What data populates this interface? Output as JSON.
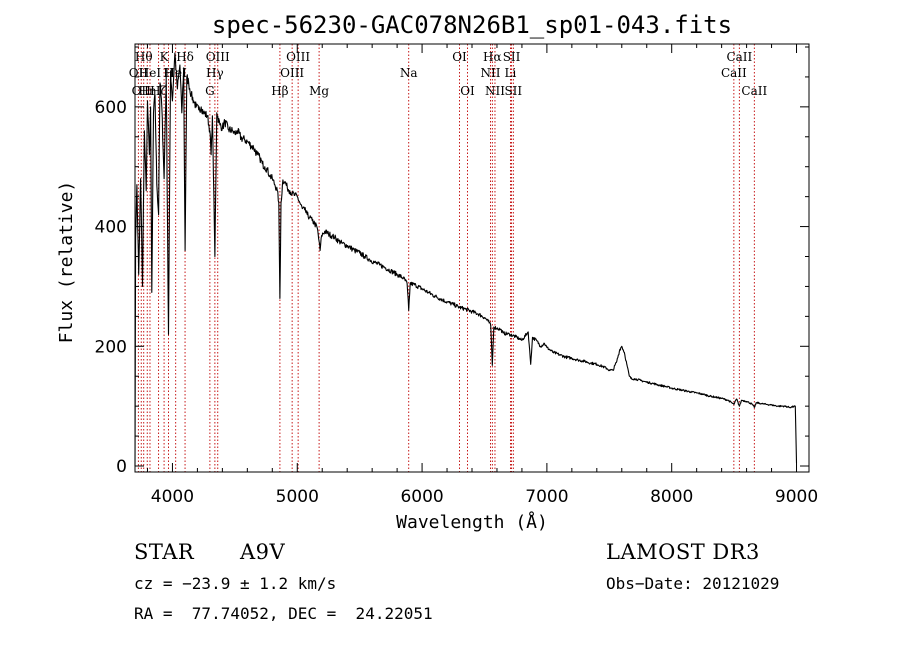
{
  "chart_data": {
    "type": "line",
    "title": "spec-56230-GAC078N26B1_sp01-043.fits",
    "xlabel": "Wavelength (Å)",
    "ylabel": "Flux (relative)",
    "xlim": [
      3700,
      9100
    ],
    "ylim": [
      -10,
      705
    ],
    "xticks": [
      4000,
      5000,
      6000,
      7000,
      8000,
      9000
    ],
    "yticks": [
      0,
      200,
      400,
      600
    ],
    "grid": false,
    "series": [
      {
        "name": "spectrum",
        "anchors": [
          [
            3700,
            0
          ],
          [
            3705,
            380
          ],
          [
            3715,
            470
          ],
          [
            3730,
            320
          ],
          [
            3745,
            480
          ],
          [
            3760,
            300
          ],
          [
            3775,
            560
          ],
          [
            3790,
            460
          ],
          [
            3800,
            610
          ],
          [
            3815,
            520
          ],
          [
            3825,
            600
          ],
          [
            3835,
            290
          ],
          [
            3848,
            590
          ],
          [
            3860,
            620
          ],
          [
            3875,
            470
          ],
          [
            3889,
            420
          ],
          [
            3900,
            640
          ],
          [
            3915,
            600
          ],
          [
            3933,
            480
          ],
          [
            3950,
            650
          ],
          [
            3968,
            220
          ],
          [
            3985,
            660
          ],
          [
            4000,
            610
          ],
          [
            4020,
            690
          ],
          [
            4040,
            630
          ],
          [
            4060,
            670
          ],
          [
            4075,
            590
          ],
          [
            4090,
            665
          ],
          [
            4101,
            360
          ],
          [
            4115,
            650
          ],
          [
            4130,
            640
          ],
          [
            4150,
            620
          ],
          [
            4170,
            610
          ],
          [
            4190,
            600
          ],
          [
            4210,
            595
          ],
          [
            4230,
            600
          ],
          [
            4250,
            590
          ],
          [
            4280,
            585
          ],
          [
            4300,
            560
          ],
          [
            4310,
            520
          ],
          [
            4320,
            585
          ],
          [
            4340,
            350
          ],
          [
            4355,
            590
          ],
          [
            4380,
            570
          ],
          [
            4400,
            565
          ],
          [
            4420,
            575
          ],
          [
            4450,
            562
          ],
          [
            4480,
            560
          ],
          [
            4500,
            555
          ],
          [
            4520,
            560
          ],
          [
            4550,
            548
          ],
          [
            4580,
            545
          ],
          [
            4600,
            542
          ],
          [
            4630,
            535
          ],
          [
            4650,
            532
          ],
          [
            4680,
            520
          ],
          [
            4700,
            515
          ],
          [
            4720,
            505
          ],
          [
            4740,
            500
          ],
          [
            4760,
            495
          ],
          [
            4780,
            485
          ],
          [
            4800,
            480
          ],
          [
            4820,
            470
          ],
          [
            4840,
            460
          ],
          [
            4852,
            440
          ],
          [
            4861,
            280
          ],
          [
            4870,
            440
          ],
          [
            4885,
            478
          ],
          [
            4900,
            475
          ],
          [
            4920,
            465
          ],
          [
            4940,
            460
          ],
          [
            4960,
            455
          ],
          [
            4980,
            452
          ],
          [
            5000,
            450
          ],
          [
            5020,
            440
          ],
          [
            5040,
            430
          ],
          [
            5060,
            428
          ],
          [
            5080,
            420
          ],
          [
            5100,
            415
          ],
          [
            5120,
            410
          ],
          [
            5140,
            405
          ],
          [
            5160,
            398
          ],
          [
            5175,
            375
          ],
          [
            5183,
            360
          ],
          [
            5195,
            385
          ],
          [
            5220,
            392
          ],
          [
            5250,
            388
          ],
          [
            5280,
            384
          ],
          [
            5300,
            382
          ],
          [
            5330,
            376
          ],
          [
            5360,
            372
          ],
          [
            5400,
            368
          ],
          [
            5430,
            364
          ],
          [
            5460,
            360
          ],
          [
            5500,
            356
          ],
          [
            5540,
            350
          ],
          [
            5580,
            345
          ],
          [
            5620,
            340
          ],
          [
            5660,
            336
          ],
          [
            5700,
            332
          ],
          [
            5750,
            326
          ],
          [
            5800,
            320
          ],
          [
            5850,
            314
          ],
          [
            5880,
            305
          ],
          [
            5893,
            260
          ],
          [
            5905,
            305
          ],
          [
            5950,
            302
          ],
          [
            6000,
            296
          ],
          [
            6050,
            290
          ],
          [
            6100,
            284
          ],
          [
            6150,
            279
          ],
          [
            6200,
            274
          ],
          [
            6250,
            270
          ],
          [
            6300,
            265
          ],
          [
            6350,
            262
          ],
          [
            6400,
            258
          ],
          [
            6450,
            254
          ],
          [
            6500,
            248
          ],
          [
            6530,
            242
          ],
          [
            6550,
            235
          ],
          [
            6563,
            168
          ],
          [
            6575,
            232
          ],
          [
            6600,
            230
          ],
          [
            6630,
            228
          ],
          [
            6650,
            222
          ],
          [
            6700,
            220
          ],
          [
            6750,
            216
          ],
          [
            6800,
            210
          ],
          [
            6850,
            224
          ],
          [
            6870,
            170
          ],
          [
            6885,
            215
          ],
          [
            6920,
            209
          ],
          [
            6950,
            200
          ],
          [
            6980,
            205
          ],
          [
            7000,
            198
          ],
          [
            7050,
            190
          ],
          [
            7100,
            186
          ],
          [
            7150,
            182
          ],
          [
            7200,
            180
          ],
          [
            7250,
            177
          ],
          [
            7300,
            175
          ],
          [
            7350,
            172
          ],
          [
            7400,
            170
          ],
          [
            7450,
            166
          ],
          [
            7480,
            163
          ],
          [
            7500,
            160
          ],
          [
            7530,
            160
          ],
          [
            7560,
            175
          ],
          [
            7585,
            195
          ],
          [
            7600,
            200
          ],
          [
            7620,
            190
          ],
          [
            7640,
            170
          ],
          [
            7660,
            150
          ],
          [
            7680,
            145
          ],
          [
            7700,
            146
          ],
          [
            7750,
            143
          ],
          [
            7800,
            140
          ],
          [
            7850,
            138
          ],
          [
            7900,
            135
          ],
          [
            7950,
            133
          ],
          [
            8000,
            130
          ],
          [
            8050,
            128
          ],
          [
            8100,
            126
          ],
          [
            8150,
            124
          ],
          [
            8200,
            122
          ],
          [
            8250,
            120
          ],
          [
            8300,
            117
          ],
          [
            8350,
            115
          ],
          [
            8400,
            113
          ],
          [
            8450,
            110
          ],
          [
            8498,
            103
          ],
          [
            8520,
            112
          ],
          [
            8542,
            100
          ],
          [
            8560,
            110
          ],
          [
            8600,
            108
          ],
          [
            8640,
            104
          ],
          [
            8662,
            98
          ],
          [
            8680,
            106
          ],
          [
            8720,
            104
          ],
          [
            8760,
            103
          ],
          [
            8800,
            102
          ],
          [
            8850,
            100
          ],
          [
            8900,
            100
          ],
          [
            8950,
            98
          ],
          [
            8990,
            100
          ],
          [
            9000,
            5
          ]
        ]
      }
    ],
    "lines": [
      {
        "wave": 3727,
        "label": "OII",
        "row": 2
      },
      {
        "wave": 3750,
        "label": "OII",
        "row": 3
      },
      {
        "wave": 3770,
        "label": "Hθ",
        "row": 1
      },
      {
        "wave": 3798,
        "label": "Hη",
        "row": 3
      },
      {
        "wave": 3820,
        "label": "HeI",
        "row": 2
      },
      {
        "wave": 3889,
        "label": "Hζ",
        "row": 3
      },
      {
        "wave": 3933,
        "label": "K",
        "row": 1
      },
      {
        "wave": 3968,
        "label": "H",
        "row": 2
      },
      {
        "wave": 4026,
        "label": "HeI",
        "row": 2
      },
      {
        "wave": 4101,
        "label": "Hδ",
        "row": 1
      },
      {
        "wave": 4300,
        "label": "G",
        "row": 3
      },
      {
        "wave": 4340,
        "label": "Hγ",
        "row": 2
      },
      {
        "wave": 4363,
        "label": "OIII",
        "row": 1
      },
      {
        "wave": 4861,
        "label": "Hβ",
        "row": 3
      },
      {
        "wave": 4959,
        "label": "OIII",
        "row": 2
      },
      {
        "wave": 5007,
        "label": "OIII",
        "row": 1
      },
      {
        "wave": 5175,
        "label": "Mg",
        "row": 3
      },
      {
        "wave": 5893,
        "label": "Na",
        "row": 2
      },
      {
        "wave": 6300,
        "label": "OI",
        "row": 1
      },
      {
        "wave": 6364,
        "label": "OI",
        "row": 3
      },
      {
        "wave": 6548,
        "label": "NII",
        "row": 2
      },
      {
        "wave": 6563,
        "label": "Hα",
        "row": 1
      },
      {
        "wave": 6584,
        "label": "NII",
        "row": 3
      },
      {
        "wave": 6708,
        "label": "Li",
        "row": 2
      },
      {
        "wave": 6717,
        "label": "SII",
        "row": 1
      },
      {
        "wave": 6731,
        "label": "SII",
        "row": 3
      },
      {
        "wave": 8498,
        "label": "CaII",
        "row": 2
      },
      {
        "wave": 8542,
        "label": "CaII",
        "row": 1
      },
      {
        "wave": 8662,
        "label": "CaII",
        "row": 3
      }
    ],
    "line_color": "#c00000"
  },
  "info": {
    "object_class": "STAR",
    "subclass": "A9V",
    "survey": "LAMOST DR3",
    "cz": "cz = −23.9 ± 1.2 km/s",
    "obs_date": "Obs−Date: 20121029",
    "radec": "RA =  77.74052, DEC =  24.22051"
  }
}
